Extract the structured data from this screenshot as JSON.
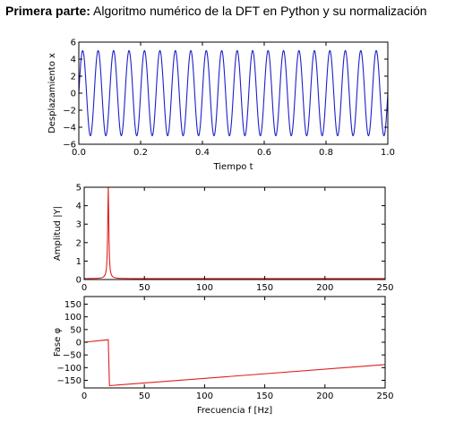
{
  "heading": {
    "bold": "Primera parte:",
    "text": " Algoritmo numérico de la DFT en Python y su normalización"
  },
  "chart_data": [
    {
      "type": "line",
      "xlabel": "Tiempo t",
      "ylabel": "Desplazamiento x",
      "xlim": [
        0.0,
        1.0
      ],
      "ylim": [
        -6,
        6
      ],
      "xticks": [
        "0.0",
        "0.2",
        "0.4",
        "0.6",
        "0.8",
        "1.0"
      ],
      "yticks": [
        "6",
        "4",
        "2",
        "0",
        "−2",
        "−4",
        "−6"
      ],
      "series": [
        {
          "color": "#1f1fcc",
          "function": "5*sin(2*pi*20*t)",
          "amplitude": 5,
          "frequency_hz": 20
        }
      ],
      "grid": false
    },
    {
      "type": "line",
      "xlabel": "",
      "ylabel": "Amplitud |Y|",
      "xlim": [
        0,
        250
      ],
      "ylim": [
        0,
        5
      ],
      "xticks": [
        "0",
        "50",
        "100",
        "150",
        "200",
        "250"
      ],
      "yticks": [
        "5",
        "4",
        "3",
        "2",
        "1",
        "0"
      ],
      "series": [
        {
          "color": "#e02020",
          "peak_x": 20,
          "peak_y": 5,
          "baseline": 0.05
        }
      ],
      "grid": false
    },
    {
      "type": "line",
      "xlabel": "Frecuencia f [Hz]",
      "ylabel": "Fase φ",
      "xlim": [
        0,
        250
      ],
      "ylim": [
        -180,
        180
      ],
      "xticks": [
        "0",
        "50",
        "100",
        "150",
        "200",
        "250"
      ],
      "yticks": [
        "150",
        "100",
        "50",
        "0",
        "−50",
        "−100",
        "−150"
      ],
      "series": [
        {
          "color": "#e02020",
          "x": [
            0,
            20,
            20,
            21,
            250
          ],
          "y": [
            0,
            10,
            10,
            -171,
            -88
          ]
        }
      ],
      "grid": false
    }
  ]
}
